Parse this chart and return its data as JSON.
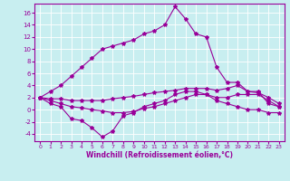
{
  "xlabel": "Windchill (Refroidissement éolien,°C)",
  "background_color": "#c8eef0",
  "line_color": "#990099",
  "xlim": [
    -0.5,
    23.5
  ],
  "ylim": [
    -5.2,
    17.5
  ],
  "yticks": [
    -4,
    -2,
    0,
    2,
    4,
    6,
    8,
    10,
    12,
    14,
    16
  ],
  "xticks": [
    0,
    1,
    2,
    3,
    4,
    5,
    6,
    7,
    8,
    9,
    10,
    11,
    12,
    13,
    14,
    15,
    16,
    17,
    18,
    19,
    20,
    21,
    22,
    23
  ],
  "line1_x": [
    0,
    1,
    2,
    3,
    4,
    5,
    6,
    7,
    8,
    9,
    10,
    11,
    12,
    13,
    14,
    15,
    16,
    17,
    18,
    19,
    20,
    21,
    22,
    23
  ],
  "line1_y": [
    2.0,
    3.0,
    4.0,
    5.5,
    7.0,
    8.5,
    10.0,
    10.5,
    11.0,
    11.5,
    12.5,
    13.0,
    14.0,
    17.0,
    15.0,
    12.5,
    12.0,
    7.0,
    4.5,
    4.5,
    3.0,
    3.0,
    1.0,
    0.5
  ],
  "line2_x": [
    0,
    1,
    2,
    3,
    4,
    5,
    6,
    7,
    8,
    9,
    10,
    11,
    12,
    13,
    14,
    15,
    16,
    17,
    18,
    19,
    20,
    21,
    22,
    23
  ],
  "line2_y": [
    2.0,
    1.0,
    0.5,
    -1.5,
    -1.8,
    -3.0,
    -4.5,
    -3.5,
    -1.0,
    -0.5,
    0.5,
    1.0,
    1.5,
    2.5,
    3.0,
    3.0,
    2.5,
    1.5,
    1.0,
    0.5,
    0.0,
    0.0,
    -0.5,
    -0.5
  ],
  "line3_x": [
    0,
    1,
    2,
    3,
    4,
    5,
    6,
    7,
    8,
    9,
    10,
    11,
    12,
    13,
    14,
    15,
    16,
    17,
    18,
    19,
    20,
    21,
    22,
    23
  ],
  "line3_y": [
    2.0,
    1.8,
    1.8,
    1.5,
    1.5,
    1.5,
    1.5,
    1.8,
    2.0,
    2.2,
    2.5,
    2.8,
    3.0,
    3.2,
    3.5,
    3.5,
    3.5,
    3.2,
    3.5,
    4.0,
    3.0,
    2.8,
    2.0,
    1.0
  ],
  "line4_x": [
    0,
    1,
    2,
    3,
    4,
    5,
    6,
    7,
    8,
    9,
    10,
    11,
    12,
    13,
    14,
    15,
    16,
    17,
    18,
    19,
    20,
    21,
    22,
    23
  ],
  "line4_y": [
    2.0,
    1.5,
    1.0,
    0.5,
    0.3,
    0.0,
    -0.2,
    -0.5,
    -0.5,
    -0.3,
    0.2,
    0.5,
    1.0,
    1.5,
    2.0,
    2.5,
    2.5,
    2.0,
    2.0,
    2.5,
    2.5,
    2.5,
    1.5,
    0.5
  ]
}
